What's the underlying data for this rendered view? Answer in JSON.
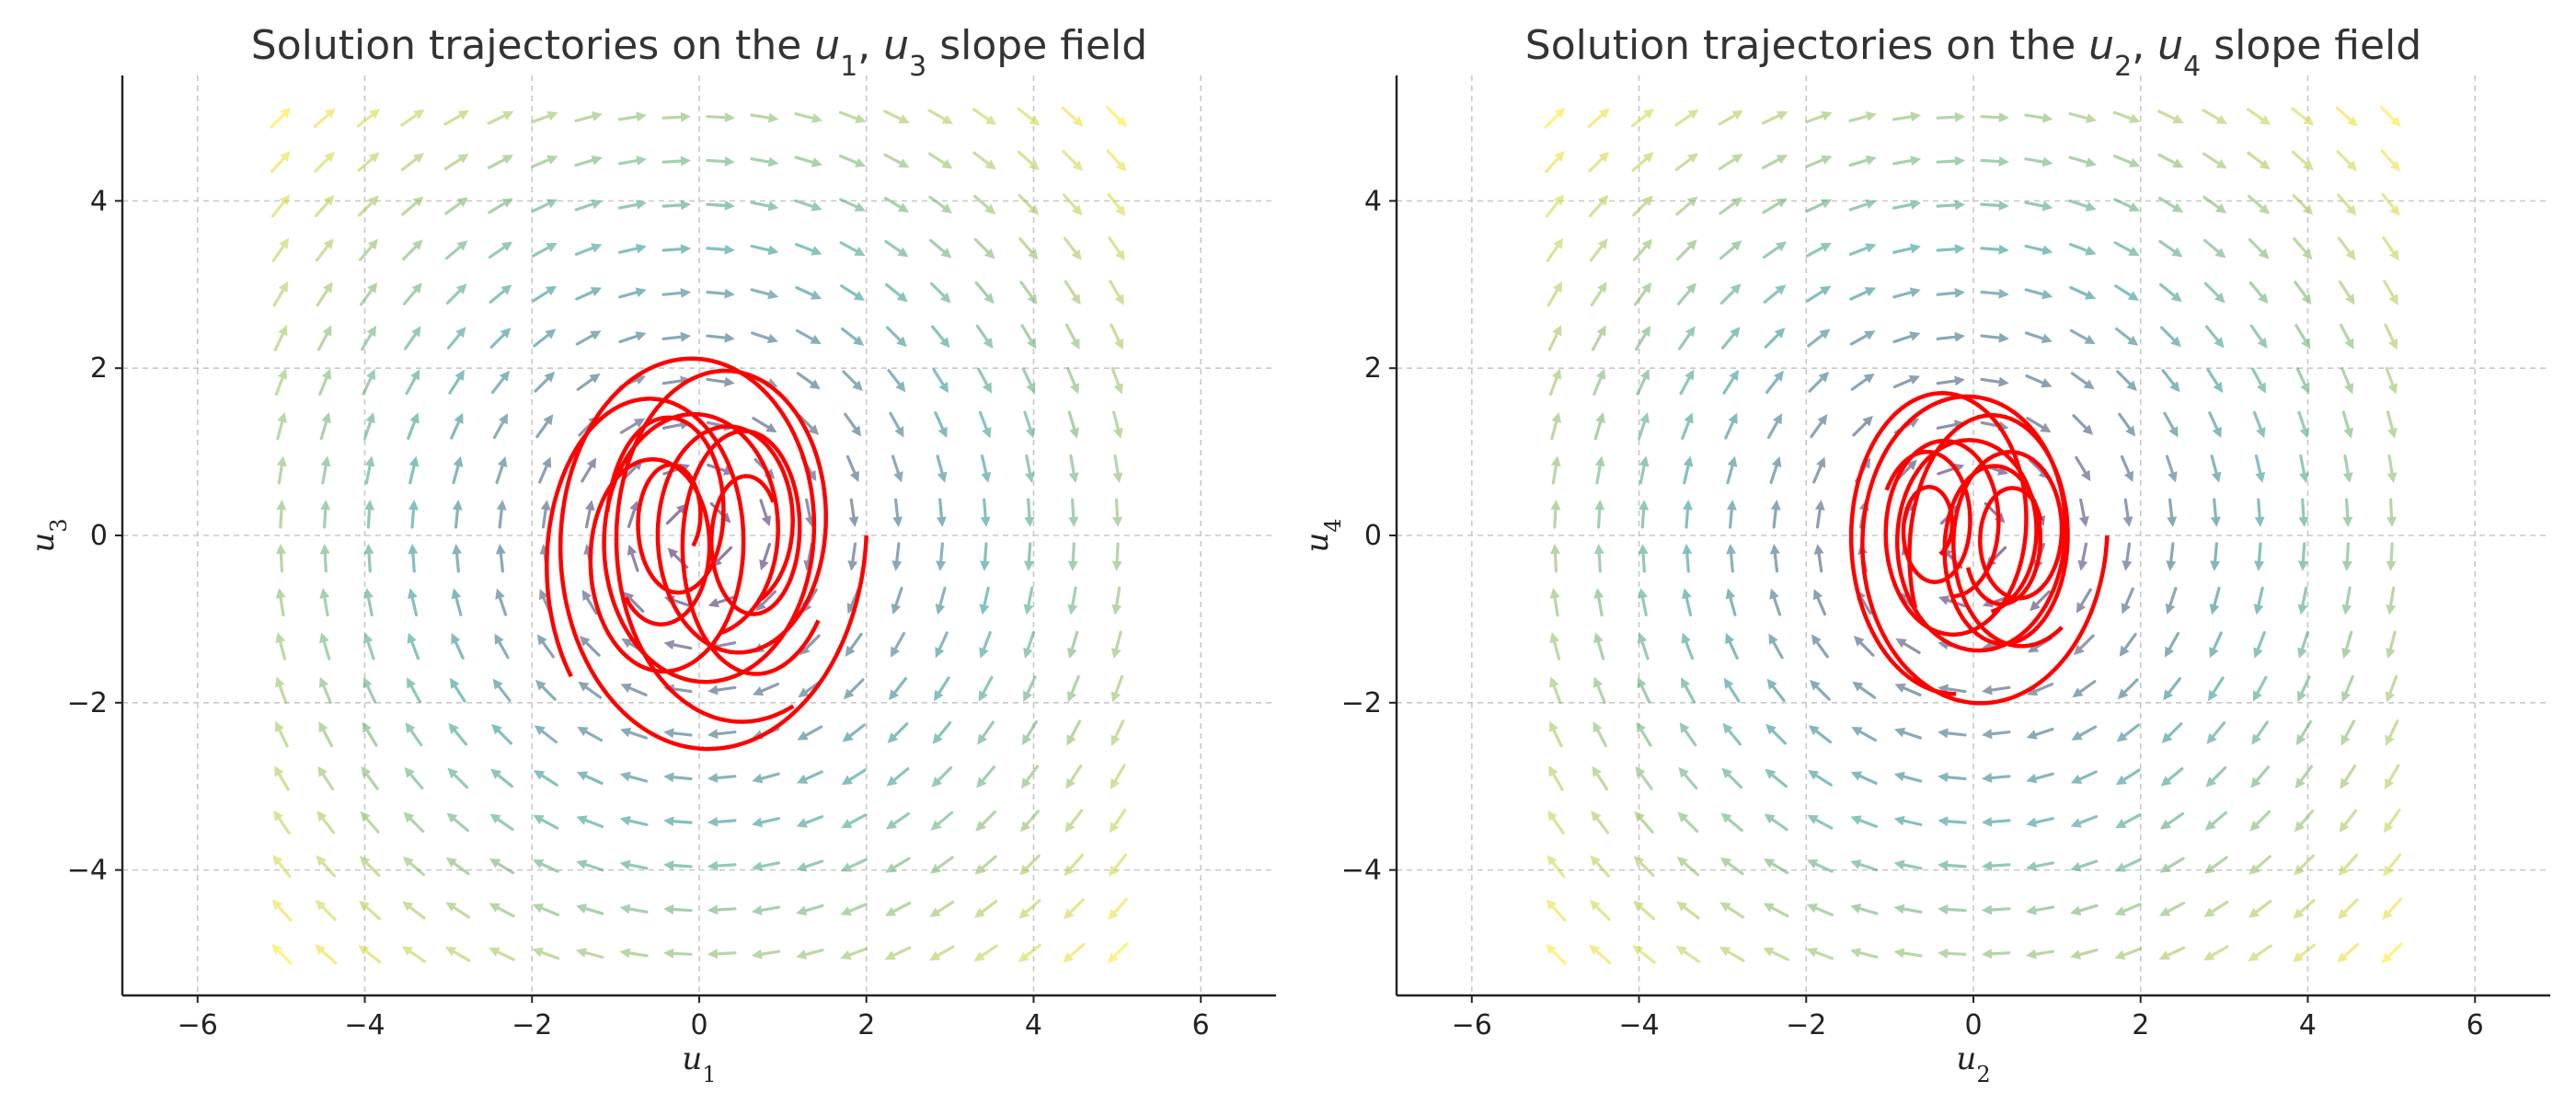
{
  "chart_data": [
    {
      "type": "line",
      "title_prefix": "Solution trajectories on the ",
      "title_var_a": "u",
      "title_sub_a": "1",
      "title_sep": ", ",
      "title_var_b": "u",
      "title_sub_b": "3",
      "title_suffix": " slope field",
      "xlabel_var": "u",
      "xlabel_sub": "1",
      "ylabel_var": "u",
      "ylabel_sub": "3",
      "xlim": [
        -6.9,
        6.9
      ],
      "ylim": [
        -5.5,
        5.5
      ],
      "xticks": [
        -6,
        -4,
        -2,
        0,
        2,
        4,
        6
      ],
      "yticks": [
        -4,
        -2,
        0,
        2,
        4
      ],
      "xtick_labels": [
        "−6",
        "−4",
        "−2",
        "0",
        "2",
        "4",
        "6"
      ],
      "ytick_labels": [
        "−4",
        "−2",
        "0",
        "2",
        "4"
      ],
      "grid": true,
      "slope_field": {
        "x_range": [
          -5,
          5
        ],
        "y_range": [
          -5,
          5
        ],
        "count": 20,
        "vector_field": "du/dt = v, dv/dt = -u",
        "colormap": "viridis",
        "color_low": "#440154",
        "color_mid": "#21918c",
        "color_high": "#fde725"
      },
      "trajectory_color": "#ff0000",
      "trajectories": [
        {
          "ax": 2.0,
          "by": 2.8,
          "cx": 0.0,
          "cy": 0.0,
          "phase": 0,
          "decay": 0.06,
          "turns": 2.2
        },
        {
          "ax": 1.6,
          "by": 2.4,
          "cx": 0.4,
          "cy": 0.1,
          "phase": 1.1,
          "decay": 0.07,
          "turns": 2.0
        },
        {
          "ax": 1.4,
          "by": 2.2,
          "cx": -0.5,
          "cy": -0.2,
          "phase": 2.4,
          "decay": 0.08,
          "turns": 2.0
        },
        {
          "ax": 1.0,
          "by": 1.8,
          "cx": 0.6,
          "cy": 0.0,
          "phase": 0.6,
          "decay": 0.09,
          "turns": 1.8
        },
        {
          "ax": 0.8,
          "by": 1.4,
          "cx": -0.3,
          "cy": 0.2,
          "phase": 3.2,
          "decay": 0.1,
          "turns": 1.6
        }
      ]
    },
    {
      "type": "line",
      "title_prefix": "Solution trajectories on the ",
      "title_var_a": "u",
      "title_sub_a": "2",
      "title_sep": ", ",
      "title_var_b": "u",
      "title_sub_b": "4",
      "title_suffix": " slope field",
      "xlabel_var": "u",
      "xlabel_sub": "2",
      "ylabel_var": "u",
      "ylabel_sub": "4",
      "xlim": [
        -6.9,
        6.9
      ],
      "ylim": [
        -5.5,
        5.5
      ],
      "xticks": [
        -6,
        -4,
        -2,
        0,
        2,
        4,
        6
      ],
      "yticks": [
        -4,
        -2,
        0,
        2,
        4
      ],
      "xtick_labels": [
        "−6",
        "−4",
        "−2",
        "0",
        "2",
        "4",
        "6"
      ],
      "ytick_labels": [
        "−4",
        "−2",
        "0",
        "2",
        "4"
      ],
      "grid": true,
      "slope_field": {
        "x_range": [
          -5,
          5
        ],
        "y_range": [
          -5,
          5
        ],
        "count": 20,
        "vector_field": "du/dt = v, dv/dt = -u",
        "colormap": "viridis",
        "color_low": "#440154",
        "color_mid": "#21918c",
        "color_high": "#fde725"
      },
      "trajectory_color": "#ff0000",
      "trajectories": [
        {
          "ax": 1.6,
          "by": 2.2,
          "cx": 0.0,
          "cy": 0.0,
          "phase": 0,
          "decay": 0.06,
          "turns": 2.2
        },
        {
          "ax": 1.3,
          "by": 2.0,
          "cx": -0.3,
          "cy": 0.1,
          "phase": 1.5,
          "decay": 0.07,
          "turns": 2.0
        },
        {
          "ax": 1.1,
          "by": 1.8,
          "cx": 0.3,
          "cy": -0.1,
          "phase": 2.7,
          "decay": 0.08,
          "turns": 2.0
        },
        {
          "ax": 0.9,
          "by": 1.4,
          "cx": 0.5,
          "cy": 0.0,
          "phase": 0.9,
          "decay": 0.09,
          "turns": 1.8
        },
        {
          "ax": 0.6,
          "by": 1.0,
          "cx": -0.5,
          "cy": 0.1,
          "phase": 3.6,
          "decay": 0.1,
          "turns": 1.6
        }
      ]
    }
  ]
}
